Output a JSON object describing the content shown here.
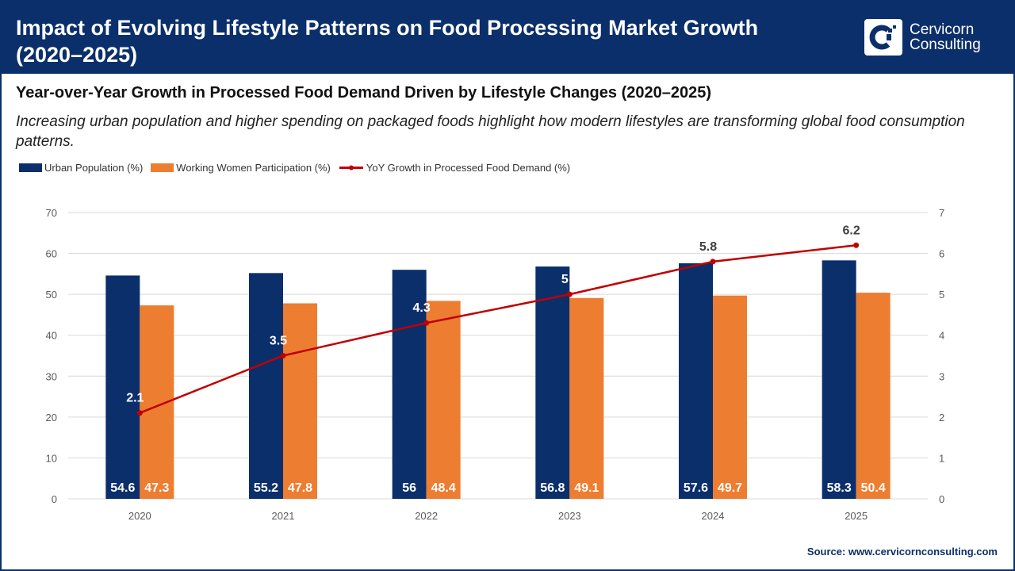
{
  "header": {
    "title_line1": "Impact of Evolving Lifestyle Patterns on Food Processing Market Growth",
    "title_line2": "(2020–2025)",
    "logo": {
      "line1": "Cervicorn",
      "line2": "Consulting"
    }
  },
  "colors": {
    "header_bg": "#0b2f6b",
    "urban": "#0b2f6b",
    "women": "#ed7d31",
    "line": "#c00000"
  },
  "chart_data": {
    "type": "bar",
    "title": "Year-over-Year Growth in Processed Food Demand Driven by Lifestyle Changes (2020–2025)",
    "subtitle": "Increasing urban population and higher spending on packaged foods highlight how modern lifestyles are transforming global food consumption patterns.",
    "categories": [
      "2020",
      "2021",
      "2022",
      "2023",
      "2024",
      "2025"
    ],
    "series": [
      {
        "name": "Urban Population (%)",
        "type": "bar",
        "axis": "left",
        "values": [
          54.6,
          55.2,
          56,
          56.8,
          57.6,
          58.3
        ]
      },
      {
        "name": "Working Women Participation (%)",
        "type": "bar",
        "axis": "left",
        "values": [
          47.3,
          47.8,
          48.4,
          49.1,
          49.7,
          50.4
        ]
      },
      {
        "name": "YoY Growth in Processed Food Demand (%)",
        "type": "line",
        "axis": "right",
        "values": [
          2.1,
          3.5,
          4.3,
          5,
          5.8,
          6.2
        ]
      }
    ],
    "ylim": [
      0,
      70
    ],
    "yticks": [
      "0",
      "10",
      "20",
      "30",
      "40",
      "50",
      "60",
      "70"
    ],
    "y2lim": [
      0,
      7
    ],
    "y2ticks": [
      "0",
      "1",
      "2",
      "3",
      "4",
      "5",
      "6",
      "7"
    ],
    "grid": true,
    "legend": "top-left"
  },
  "source": "Source: www.cervicornconsulting.com"
}
